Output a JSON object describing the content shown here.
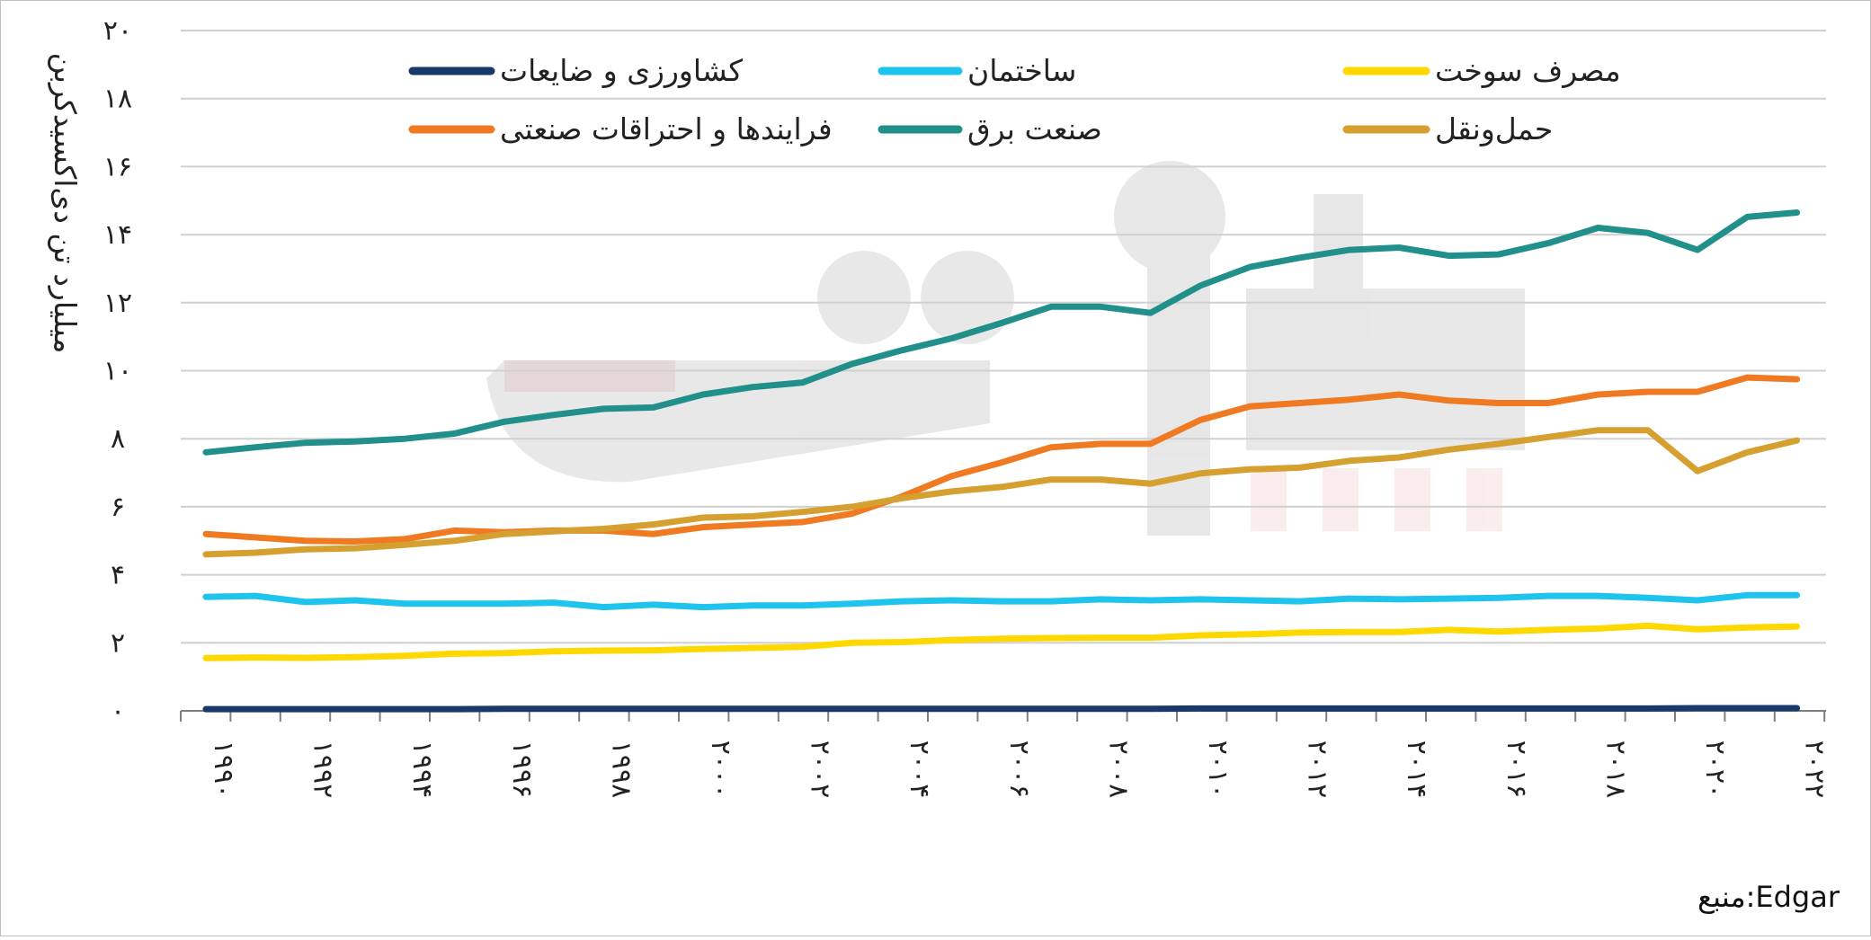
{
  "chart_data": {
    "type": "line",
    "title": "",
    "xlabel": "",
    "ylabel": "میلیارد تن دی‌اکسیدکربن",
    "ylim": [
      0,
      20
    ],
    "yticks": [
      {
        "value": 0,
        "label": "۰"
      },
      {
        "value": 2,
        "label": "۲"
      },
      {
        "value": 4,
        "label": "۴"
      },
      {
        "value": 6,
        "label": "۶"
      },
      {
        "value": 8,
        "label": "۸"
      },
      {
        "value": 10,
        "label": "۱۰"
      },
      {
        "value": 12,
        "label": "۱۲"
      },
      {
        "value": 14,
        "label": "۱۴"
      },
      {
        "value": 16,
        "label": "۱۶"
      },
      {
        "value": 18,
        "label": "۱۸"
      },
      {
        "value": 20,
        "label": "۲۰"
      }
    ],
    "grid": true,
    "legend_position": "top",
    "x": [
      1990,
      1991,
      1992,
      1993,
      1994,
      1995,
      1996,
      1997,
      1998,
      1999,
      2000,
      2001,
      2002,
      2003,
      2004,
      2005,
      2006,
      2007,
      2008,
      2009,
      2010,
      2011,
      2012,
      2013,
      2014,
      2015,
      2016,
      2017,
      2018,
      2019,
      2020,
      2021,
      2022
    ],
    "xticks": [
      {
        "value": 1990,
        "label": "۱۹۹۰"
      },
      {
        "value": 1992,
        "label": "۱۹۹۲"
      },
      {
        "value": 1994,
        "label": "۱۹۹۴"
      },
      {
        "value": 1996,
        "label": "۱۹۹۶"
      },
      {
        "value": 1998,
        "label": "۱۹۹۸"
      },
      {
        "value": 2000,
        "label": "۲۰۰۰"
      },
      {
        "value": 2002,
        "label": "۲۰۰۲"
      },
      {
        "value": 2004,
        "label": "۲۰۰۴"
      },
      {
        "value": 2006,
        "label": "۲۰۰۶"
      },
      {
        "value": 2008,
        "label": "۲۰۰۸"
      },
      {
        "value": 2010,
        "label": "۲۰۱۰"
      },
      {
        "value": 2012,
        "label": "۲۰۱۲"
      },
      {
        "value": 2014,
        "label": "۲۰۱۴"
      },
      {
        "value": 2016,
        "label": "۲۰۱۶"
      },
      {
        "value": 2018,
        "label": "۲۰۱۸"
      },
      {
        "value": 2020,
        "label": "۲۰۲۰"
      },
      {
        "value": 2022,
        "label": "۲۰۲۲"
      }
    ],
    "series": [
      {
        "name": "کشاورزی و ضایعات",
        "color": "#173a6b",
        "values": [
          0.05,
          0.05,
          0.05,
          0.05,
          0.05,
          0.05,
          0.06,
          0.06,
          0.06,
          0.06,
          0.06,
          0.06,
          0.06,
          0.06,
          0.06,
          0.06,
          0.06,
          0.06,
          0.06,
          0.06,
          0.07,
          0.07,
          0.07,
          0.07,
          0.07,
          0.07,
          0.07,
          0.07,
          0.07,
          0.07,
          0.08,
          0.08,
          0.08
        ]
      },
      {
        "name": "ساختمان",
        "color": "#1ec4ee",
        "values": [
          3.35,
          3.38,
          3.2,
          3.25,
          3.15,
          3.15,
          3.15,
          3.18,
          3.05,
          3.12,
          3.05,
          3.1,
          3.1,
          3.15,
          3.22,
          3.25,
          3.22,
          3.22,
          3.28,
          3.25,
          3.28,
          3.25,
          3.22,
          3.3,
          3.28,
          3.3,
          3.32,
          3.38,
          3.38,
          3.32,
          3.25,
          3.4,
          3.4
        ]
      },
      {
        "name": "مصرف سوخت",
        "color": "#ffd800",
        "values": [
          1.55,
          1.57,
          1.56,
          1.58,
          1.62,
          1.68,
          1.7,
          1.75,
          1.77,
          1.78,
          1.82,
          1.85,
          1.88,
          2.0,
          2.02,
          2.08,
          2.12,
          2.14,
          2.15,
          2.15,
          2.22,
          2.25,
          2.3,
          2.32,
          2.32,
          2.38,
          2.33,
          2.38,
          2.42,
          2.5,
          2.4,
          2.45,
          2.48
        ]
      },
      {
        "name": "فرایندها و احتراقات صنعتی",
        "color": "#f07a22",
        "values": [
          5.2,
          5.1,
          5.0,
          4.98,
          5.05,
          5.3,
          5.25,
          5.3,
          5.3,
          5.2,
          5.4,
          5.48,
          5.55,
          5.8,
          6.3,
          6.9,
          7.3,
          7.75,
          7.85,
          7.85,
          8.55,
          8.95,
          9.05,
          9.15,
          9.3,
          9.12,
          9.05,
          9.05,
          9.3,
          9.38,
          9.38,
          9.8,
          9.75
        ]
      },
      {
        "name": "صنعت برق",
        "color": "#22908a",
        "values": [
          7.6,
          7.75,
          7.88,
          7.92,
          8.0,
          8.15,
          8.5,
          8.7,
          8.88,
          8.92,
          9.3,
          9.52,
          9.65,
          10.2,
          10.6,
          10.95,
          11.4,
          11.88,
          11.88,
          11.7,
          12.5,
          13.05,
          13.32,
          13.55,
          13.62,
          13.38,
          13.42,
          13.75,
          14.2,
          14.05,
          13.55,
          14.52,
          14.65
        ]
      },
      {
        "name": "حمل‌ونقل",
        "color": "#d5a030",
        "values": [
          4.6,
          4.65,
          4.75,
          4.78,
          4.88,
          5.0,
          5.2,
          5.28,
          5.35,
          5.48,
          5.68,
          5.72,
          5.85,
          6.0,
          6.25,
          6.45,
          6.58,
          6.8,
          6.8,
          6.68,
          6.98,
          7.1,
          7.15,
          7.35,
          7.45,
          7.68,
          7.85,
          8.05,
          8.25,
          8.25,
          7.05,
          7.6,
          7.95
        ]
      }
    ],
    "source": "منبع:Edgar"
  }
}
